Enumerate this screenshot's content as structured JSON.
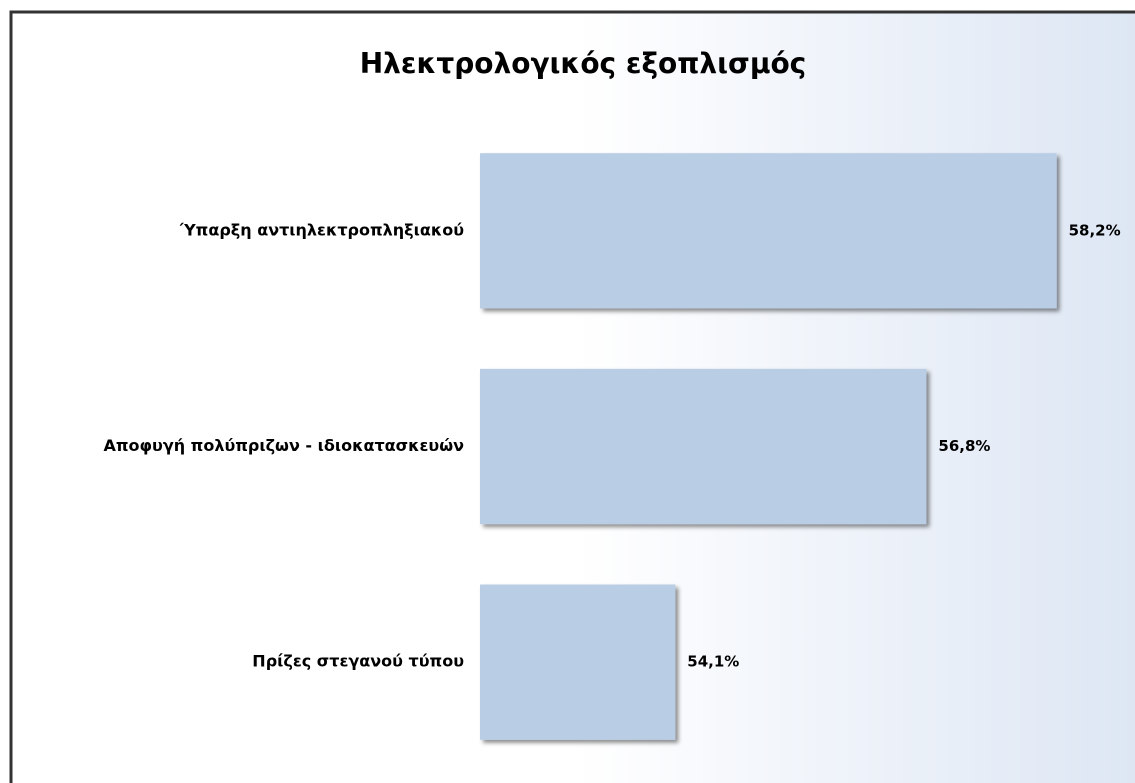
{
  "chart_data": {
    "type": "barh",
    "title": "Ηλεκτρολογικός εξοπλισμός",
    "categories": [
      "Ύπαρξη αντιηλεκτροπληξιακού",
      "Αποφυγή πολύπριζων - ιδιοκατασκευών",
      "Πρίζες στεγανού τύπου"
    ],
    "values": [
      58.2,
      56.8,
      54.1
    ],
    "value_labels": [
      "58,2%",
      "56,8%",
      "54,1%"
    ],
    "color": "#b9cde5",
    "xlim": [
      52,
      59
    ]
  }
}
